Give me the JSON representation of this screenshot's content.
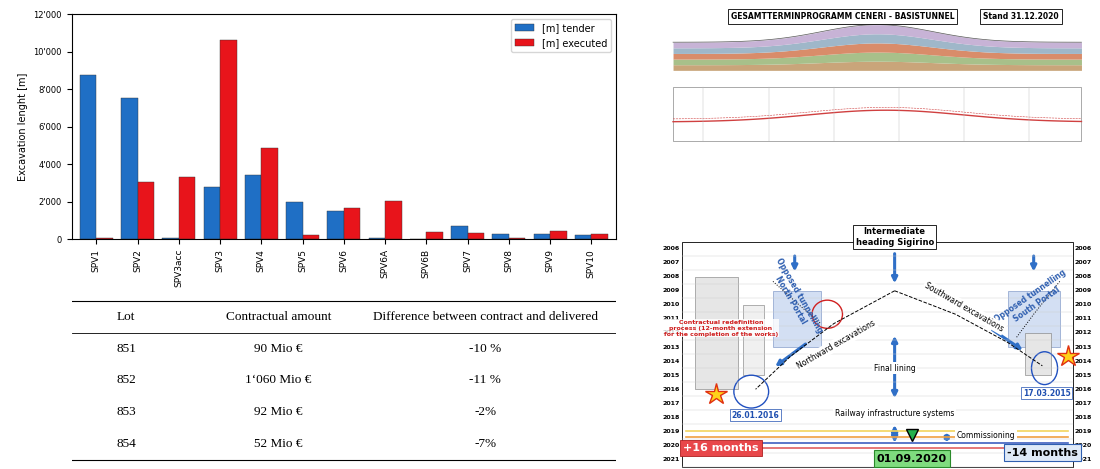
{
  "chart_data": {
    "type": "bar",
    "y_label": "Excavation lenght [m]",
    "categories": [
      "SPV1",
      "SPV2",
      "SPV3acc",
      "SPV3",
      "SPV4",
      "SPV5",
      "SPV6",
      "SPV6A",
      "SPV6B",
      "SPV7",
      "SPV8",
      "SPV9",
      "SPV10"
    ],
    "series": [
      {
        "name": "[m] tender",
        "color": "#1f6fc5",
        "values": [
          8750,
          7500,
          50,
          2800,
          3400,
          2000,
          1500,
          50,
          0,
          700,
          250,
          250,
          200
        ]
      },
      {
        "name": "[m] executed",
        "color": "#e8141b",
        "values": [
          50,
          3050,
          3300,
          10600,
          4850,
          200,
          1650,
          2050,
          400,
          350,
          50,
          450,
          250
        ]
      }
    ],
    "ylim": [
      0,
      12000
    ],
    "yticks": [
      0,
      {
        "value": 2000,
        "label": "2'000"
      },
      {
        "value": 4000,
        "label": "4'000"
      },
      {
        "value": 6000,
        "label": "6'000"
      },
      {
        "value": 8000,
        "label": "8'000"
      },
      {
        "value": 10000,
        "label": "10'000"
      },
      {
        "value": 12000,
        "label": "12'000"
      }
    ],
    "grid": false,
    "legend": "upper right"
  },
  "table": {
    "columns": [
      "Lot",
      "Contractual amount",
      "Difference between contract and delivered"
    ],
    "rows": [
      [
        "851",
        "90 Mio €",
        "-10 %"
      ],
      [
        "852",
        "1‘060 Mio €",
        "-11 %"
      ],
      [
        "853",
        "92 Mio €",
        "-2%"
      ],
      [
        "854",
        "52 Mio €",
        "-7%"
      ]
    ]
  },
  "schedule": {
    "title": "GESAMTTERMINPROGRAMM CENERI - BASISTUNNEL",
    "status": "Stand 31.12.2020",
    "years": [
      2006,
      2007,
      2008,
      2009,
      2010,
      2011,
      2012,
      2013,
      2014,
      2015,
      2016,
      2017,
      2018,
      2019,
      2020,
      2021
    ],
    "annotations": {
      "intermediate": [
        "Intermediate",
        "heading Sigirino"
      ],
      "north_portal": [
        "Opposed tunnelling",
        "North Portal"
      ],
      "south_portal": [
        "Opposed tunnelling",
        "South Portal"
      ],
      "redefinition": [
        "Contractual redefinition",
        "process (12-month extension",
        "for the completion of the works)"
      ],
      "northward": [
        "Northward excavations"
      ],
      "southward": [
        "Southward excavations"
      ],
      "final_lining": [
        "Final lining"
      ],
      "railway": [
        "Railway infrastructure systems"
      ],
      "commissioning": [
        "Commissioning"
      ],
      "north_date": [
        "26.01.2016"
      ],
      "south_date": [
        "17.03.2015"
      ],
      "north_delay": [
        "+16 months"
      ],
      "south_gain": [
        "-14 months"
      ],
      "opening": [
        "01.09.2020"
      ]
    }
  }
}
